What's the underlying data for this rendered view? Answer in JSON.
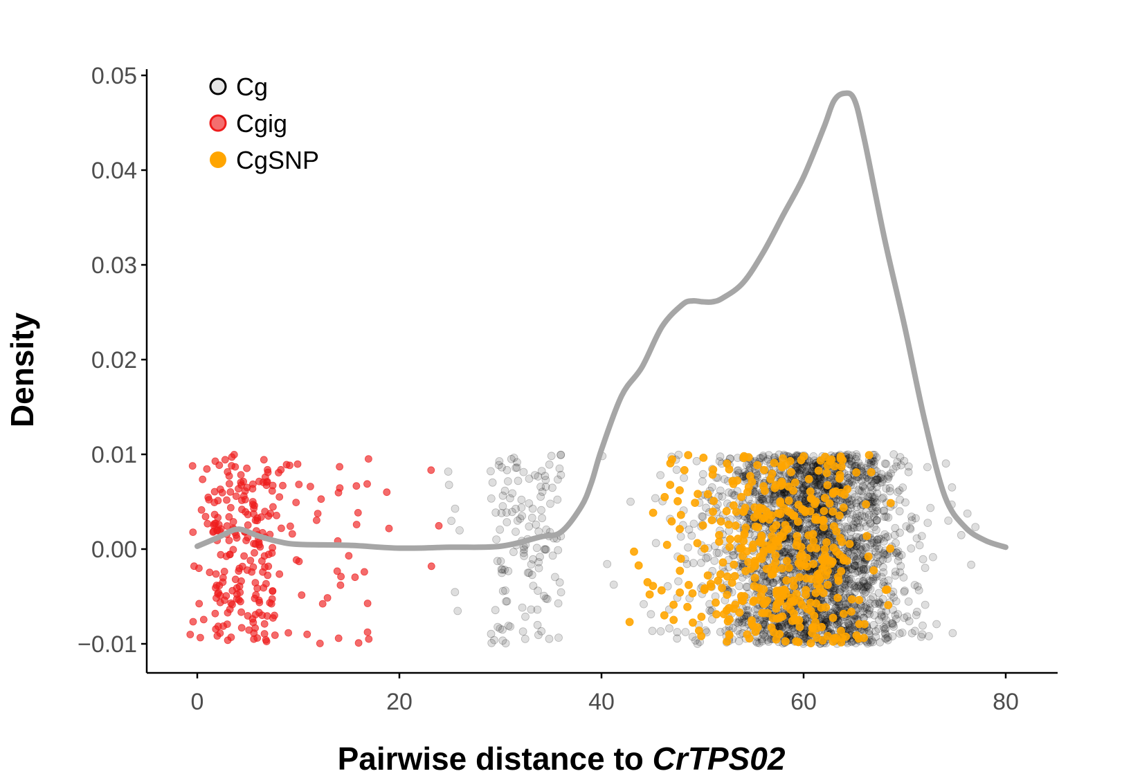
{
  "chart_data": {
    "type": "scatter",
    "title": "",
    "xlabel_prefix": "Pairwise distance to ",
    "xlabel_italic": "CrTPS02",
    "ylabel": "Density",
    "xlim": [
      -5,
      85
    ],
    "ylim": [
      -0.013,
      0.051
    ],
    "xticks": [
      0,
      20,
      40,
      60,
      80
    ],
    "xtick_labels": [
      "0",
      "20",
      "40",
      "60",
      "80"
    ],
    "yticks": [
      -0.01,
      0,
      0.01,
      0.02,
      0.03,
      0.04,
      0.05
    ],
    "ytick_labels": [
      "−0.01",
      "0.00",
      "0.01",
      "0.02",
      "0.03",
      "0.04",
      "0.05"
    ],
    "legend_position": "top-left",
    "grid": false,
    "series": [
      {
        "name": "Cg",
        "kind": "jittered-points",
        "color": "#000000",
        "point_alpha": 0.13,
        "x_ranges": [
          [
            24.5,
            26
          ],
          [
            29,
            36
          ],
          [
            36,
            80.5
          ]
        ],
        "x_peak": 64,
        "jitter_range": [
          -0.01,
          0.01
        ]
      },
      {
        "name": "Cgig",
        "kind": "jittered-points",
        "color": "#ee1c1c",
        "point_alpha": 0.65,
        "x_ranges": [
          [
            -1,
            18
          ],
          [
            18.5,
            19
          ],
          [
            23,
            24
          ]
        ],
        "x_peak": 4,
        "jitter_range": [
          -0.01,
          0.01
        ]
      },
      {
        "name": "CgSNP",
        "kind": "jittered-points",
        "color": "#ffa500",
        "point_alpha": 0.9,
        "x_ranges": [
          [
            42,
            70
          ]
        ],
        "x_peak": 59,
        "jitter_range": [
          -0.01,
          0.01
        ]
      },
      {
        "name": "",
        "kind": "density-line",
        "color": "#a6a6a6",
        "x": [
          0,
          2,
          4,
          6,
          8,
          10,
          15,
          20,
          25,
          30,
          34,
          36,
          38,
          39,
          40,
          42,
          44,
          46,
          48,
          49,
          50,
          51,
          52,
          54,
          56,
          58,
          60,
          62,
          63,
          64,
          65,
          66,
          68,
          70,
          72,
          74,
          76,
          78,
          80
        ],
        "y": [
          0.0003,
          0.0012,
          0.0021,
          0.0014,
          0.0008,
          0.0005,
          0.0004,
          0.0001,
          0.0002,
          0.0003,
          0.0013,
          0.0018,
          0.0045,
          0.007,
          0.0105,
          0.0162,
          0.0192,
          0.0235,
          0.0258,
          0.0262,
          0.0261,
          0.0261,
          0.0265,
          0.0281,
          0.0313,
          0.0353,
          0.0393,
          0.0445,
          0.0473,
          0.0481,
          0.0475,
          0.0433,
          0.0328,
          0.0235,
          0.0135,
          0.0055,
          0.0023,
          0.0009,
          0.0002
        ]
      }
    ]
  }
}
